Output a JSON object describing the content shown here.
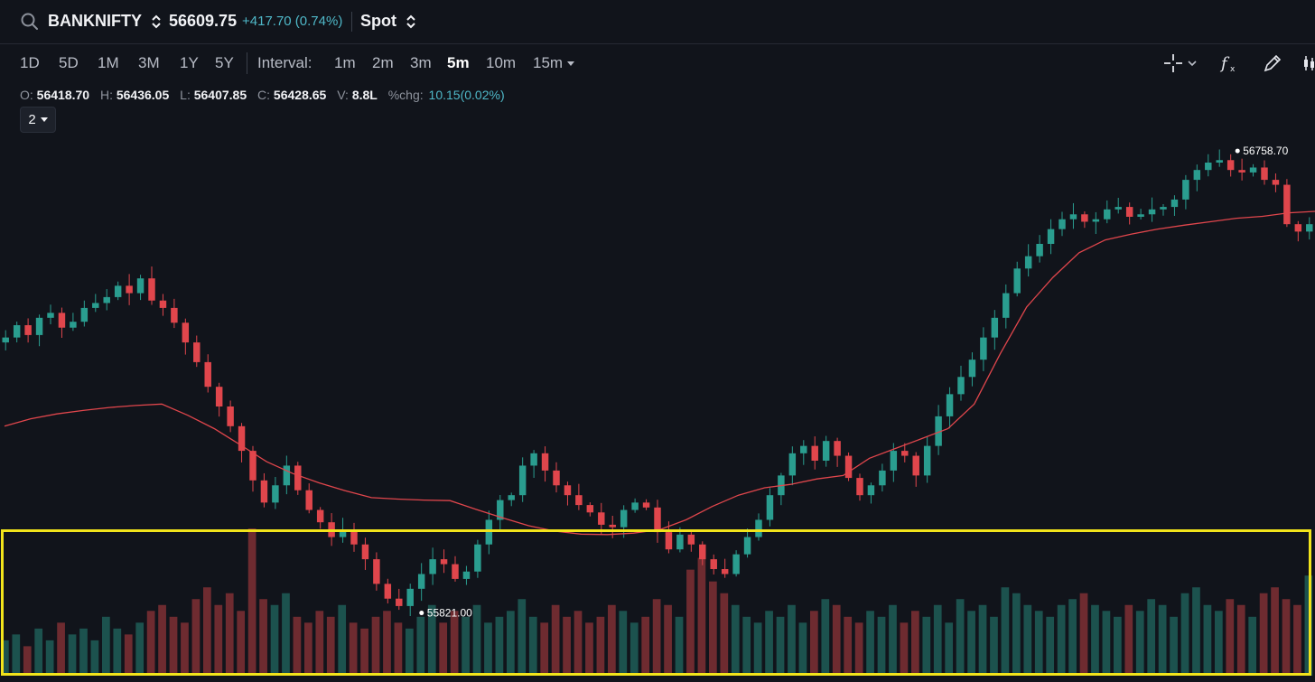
{
  "header": {
    "symbol": "BANKNIFTY",
    "price": "56609.75",
    "change": "+417.70 (0.74%)",
    "segment": "Spot"
  },
  "toolbar": {
    "ranges": [
      "1D",
      "5D",
      "1M",
      "3M",
      "1Y",
      "5Y"
    ],
    "interval_label": "Interval:",
    "intervals": [
      "1m",
      "2m",
      "3m",
      "5m",
      "10m",
      "15m"
    ],
    "active_interval": "5m",
    "tool_icons": [
      "crosshair-icon",
      "chevron-down-icon",
      "fx-indicator-icon",
      "draw-pen-icon",
      "candlestick-icon"
    ]
  },
  "ohlc": {
    "o_label": "O:",
    "o": "56418.70",
    "h_label": "H:",
    "h": "56436.05",
    "l_label": "L:",
    "l": "56407.85",
    "c_label": "C:",
    "c": "56428.65",
    "v_label": "V:",
    "v": "8.8L",
    "chg_label": "%chg:",
    "chg": "10.15(0.02%)"
  },
  "count_selector": "2",
  "chart_data": {
    "type": "candlestick",
    "high_label": "56758.70",
    "low_label": "55821.00",
    "colors": {
      "up": "#2a9d8f",
      "down": "#e0464c",
      "ma": "#e0464c",
      "highlight": "#f2e41b"
    },
    "y_range": [
      55800,
      56790
    ],
    "closes": [
      56380,
      56405,
      56385,
      56420,
      56430,
      56400,
      56412,
      56440,
      56450,
      56462,
      56485,
      56470,
      56500,
      56455,
      56440,
      56410,
      56370,
      56330,
      56280,
      56240,
      56200,
      56150,
      56090,
      56045,
      56080,
      56120,
      56070,
      56030,
      56005,
      55975,
      55990,
      55960,
      55930,
      55880,
      55850,
      55835,
      55870,
      55900,
      55930,
      55920,
      55890,
      55905,
      55960,
      56010,
      56050,
      56060,
      56120,
      56145,
      56110,
      56080,
      56060,
      56040,
      56025,
      56000,
      55995,
      56030,
      56045,
      56035,
      55985,
      55950,
      55980,
      55960,
      55930,
      55910,
      55900,
      55940,
      55975,
      56010,
      56060,
      56100,
      56145,
      56160,
      56130,
      56170,
      56140,
      56095,
      56060,
      56080,
      56110,
      56150,
      56140,
      56100,
      56160,
      56220,
      56265,
      56300,
      56335,
      56380,
      56420,
      56470,
      56520,
      56545,
      56570,
      56600,
      56620,
      56630,
      56615,
      56620,
      56640,
      56645,
      56625,
      56630,
      56640,
      56645,
      56660,
      56700,
      56720,
      56735,
      56740,
      56720,
      56715,
      56725,
      56700,
      56690,
      56610,
      56595,
      56610
    ],
    "ma_values": [
      56200,
      56215,
      56225,
      56232,
      56238,
      56242,
      56245,
      56222,
      56195,
      56162,
      56128,
      56104,
      56085,
      56069,
      56055,
      56052,
      56050,
      56049,
      56031,
      56014,
      55998,
      55987,
      55981,
      55980,
      55983,
      55990,
      56010,
      56037,
      56060,
      56075,
      56082,
      56093,
      56100,
      56135,
      56155,
      56175,
      56195,
      56245,
      56348,
      56442,
      56502,
      56552,
      56578,
      56590,
      56600,
      56608,
      56615,
      56622,
      56626,
      56633,
      56636
    ],
    "volumes": [
      6,
      7,
      5,
      8,
      6,
      9,
      7,
      8,
      6,
      10,
      8,
      7,
      9,
      11,
      12,
      10,
      9,
      13,
      15,
      12,
      14,
      11,
      25,
      13,
      12,
      14,
      10,
      9,
      11,
      10,
      12,
      9,
      8,
      10,
      11,
      9,
      8,
      10,
      12,
      9,
      11,
      10,
      12,
      9,
      10,
      11,
      13,
      10,
      9,
      12,
      10,
      11,
      9,
      10,
      12,
      11,
      9,
      10,
      13,
      12,
      10,
      18,
      20,
      16,
      14,
      12,
      10,
      9,
      11,
      10,
      12,
      9,
      11,
      13,
      12,
      10,
      9,
      11,
      10,
      12,
      9,
      11,
      10,
      12,
      9,
      13,
      11,
      12,
      10,
      15,
      14,
      12,
      11,
      10,
      12,
      13,
      14,
      12,
      11,
      10,
      12,
      11,
      13,
      12,
      10,
      14,
      15,
      12,
      11,
      13,
      12,
      10,
      14,
      15,
      13,
      12,
      17
    ]
  }
}
